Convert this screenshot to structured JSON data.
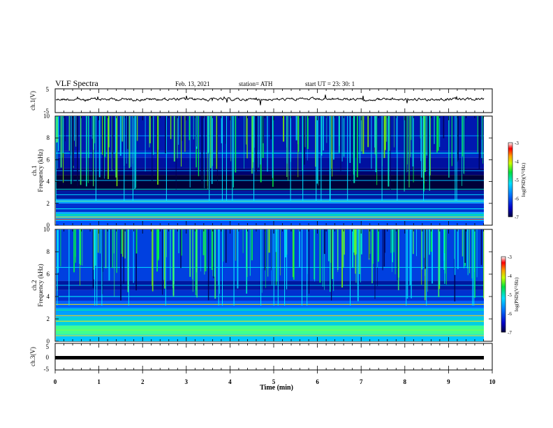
{
  "header": {
    "title": "VLF Spectra",
    "date": "Feb. 13, 2021",
    "station": "station= ATH",
    "start": "start  UT  =   23: 30: 1"
  },
  "chart_data": [
    {
      "type": "line",
      "panel": "ch1-waveform",
      "ylabel": "ch.1(V)",
      "ylim": [
        -5,
        5
      ],
      "yticks": [
        "5",
        "-5"
      ]
    },
    {
      "type": "heatmap",
      "panel": "ch1-spectrogram",
      "ylabel_top": "ch.1",
      "ylabel": "Frequency (kHz)",
      "ylim": [
        0,
        10
      ],
      "yticks": [
        "0",
        "2",
        "4",
        "6",
        "8",
        "10"
      ],
      "colorbar": {
        "label": "log(PSD)(V²/Hz)",
        "range": [
          -7,
          -3
        ],
        "ticks": [
          "-3",
          "-4",
          "-5",
          "-6",
          "-7"
        ]
      }
    },
    {
      "type": "heatmap",
      "panel": "ch2-spectrogram",
      "ylabel_top": "ch.2",
      "ylabel": "Frequency (kHz)",
      "ylim": [
        0,
        10
      ],
      "yticks": [
        "0",
        "2",
        "4",
        "6",
        "8",
        "10"
      ],
      "colorbar": {
        "label": "log(PSD)(V²/Hz)",
        "range": [
          -7,
          -3
        ],
        "ticks": [
          "-3",
          "-4",
          "-5",
          "-6",
          "-7"
        ]
      }
    },
    {
      "type": "line",
      "panel": "ch3-waveform",
      "ylabel": "ch.3(V)",
      "ylim": [
        -5,
        5
      ],
      "yticks": [
        "5",
        "0",
        "-5"
      ]
    }
  ],
  "xaxis": {
    "label": "Time  (min)",
    "xlim": [
      0,
      10
    ],
    "ticks": [
      "0",
      "1",
      "2",
      "3",
      "4",
      "5",
      "6",
      "7",
      "8",
      "9",
      "10"
    ]
  }
}
